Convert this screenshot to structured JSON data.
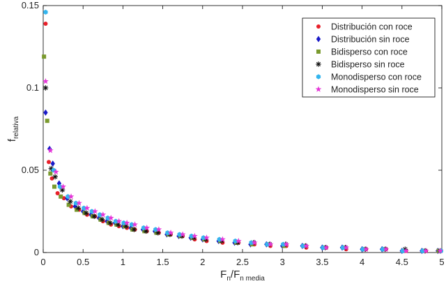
{
  "chart_data": {
    "type": "scatter",
    "title": "",
    "xlabel": {
      "base": "F",
      "sub1": "n",
      "sep": "/F",
      "sub2": "n media"
    },
    "ylabel": {
      "base": "f",
      "sub": "relativa"
    },
    "xlim": [
      0,
      5
    ],
    "ylim": [
      0,
      0.15
    ],
    "x_ticks": [
      0,
      0.5,
      1,
      1.5,
      2,
      2.5,
      3,
      3.5,
      4,
      4.5,
      5
    ],
    "x_tick_labels": [
      "0",
      "0.5",
      "1",
      "1.5",
      "2",
      "2.5",
      "3",
      "3.5",
      "4",
      "4.5",
      "5"
    ],
    "y_ticks": [
      0,
      0.05,
      0.1,
      0.15
    ],
    "y_tick_labels": [
      "0",
      "0.05",
      "0.1",
      "0.15"
    ],
    "grid": false,
    "legend_position": "top-right",
    "series": [
      {
        "name": "Distribución con roce",
        "color": "#e8202a",
        "marker": "circle",
        "points": [
          [
            0.03,
            0.139
          ],
          [
            0.07,
            0.055
          ],
          [
            0.11,
            0.045
          ],
          [
            0.18,
            0.036
          ],
          [
            0.26,
            0.033
          ],
          [
            0.35,
            0.028
          ],
          [
            0.45,
            0.026
          ],
          [
            0.55,
            0.023
          ],
          [
            0.65,
            0.022
          ],
          [
            0.75,
            0.019
          ],
          [
            0.85,
            0.017
          ],
          [
            0.95,
            0.016
          ],
          [
            1.05,
            0.015
          ],
          [
            1.15,
            0.014
          ],
          [
            1.3,
            0.013
          ],
          [
            1.45,
            0.012
          ],
          [
            1.6,
            0.011
          ],
          [
            1.75,
            0.01
          ],
          [
            1.9,
            0.008
          ],
          [
            2.05,
            0.007
          ],
          [
            2.25,
            0.006
          ],
          [
            2.45,
            0.006
          ],
          [
            2.65,
            0.005
          ],
          [
            2.85,
            0.004
          ],
          [
            3.05,
            0.004
          ],
          [
            3.3,
            0.003
          ],
          [
            3.55,
            0.003
          ],
          [
            3.8,
            0.002
          ],
          [
            4.05,
            0.002
          ],
          [
            4.3,
            0.002
          ],
          [
            4.55,
            0.001
          ],
          [
            4.8,
            0.001
          ],
          [
            4.97,
            0.001
          ]
        ]
      },
      {
        "name": "Distribución sin roce",
        "color": "#1a1ac8",
        "marker": "diamond",
        "points": [
          [
            0.03,
            0.085
          ],
          [
            0.08,
            0.063
          ],
          [
            0.12,
            0.054
          ],
          [
            0.2,
            0.042
          ],
          [
            0.3,
            0.033
          ],
          [
            0.4,
            0.028
          ],
          [
            0.5,
            0.025
          ],
          [
            0.6,
            0.023
          ],
          [
            0.7,
            0.021
          ],
          [
            0.8,
            0.019
          ],
          [
            0.9,
            0.018
          ],
          [
            1.0,
            0.016
          ],
          [
            1.1,
            0.015
          ],
          [
            1.25,
            0.014
          ],
          [
            1.4,
            0.013
          ],
          [
            1.55,
            0.011
          ],
          [
            1.7,
            0.01
          ],
          [
            1.85,
            0.009
          ],
          [
            2.0,
            0.008
          ],
          [
            2.2,
            0.007
          ],
          [
            2.4,
            0.006
          ],
          [
            2.6,
            0.005
          ],
          [
            2.8,
            0.005
          ],
          [
            3.0,
            0.004
          ],
          [
            3.25,
            0.004
          ],
          [
            3.5,
            0.003
          ],
          [
            3.75,
            0.003
          ],
          [
            4.0,
            0.002
          ],
          [
            4.25,
            0.002
          ],
          [
            4.5,
            0.001
          ],
          [
            4.75,
            0.001
          ],
          [
            4.95,
            0.001
          ]
        ]
      },
      {
        "name": "Bidisperso con roce",
        "color": "#7a9a2e",
        "marker": "square",
        "points": [
          [
            0.01,
            0.119
          ],
          [
            0.05,
            0.08
          ],
          [
            0.09,
            0.048
          ],
          [
            0.14,
            0.04
          ],
          [
            0.22,
            0.034
          ],
          [
            0.32,
            0.029
          ],
          [
            0.42,
            0.026
          ],
          [
            0.52,
            0.024
          ],
          [
            0.62,
            0.022
          ],
          [
            0.72,
            0.02
          ],
          [
            0.82,
            0.018
          ],
          [
            0.92,
            0.017
          ],
          [
            1.02,
            0.016
          ],
          [
            1.12,
            0.014
          ],
          [
            1.27,
            0.013
          ],
          [
            1.42,
            0.012
          ],
          [
            1.57,
            0.011
          ],
          [
            1.72,
            0.01
          ],
          [
            1.87,
            0.009
          ],
          [
            2.02,
            0.008
          ],
          [
            2.22,
            0.007
          ],
          [
            2.42,
            0.006
          ],
          [
            2.62,
            0.005
          ],
          [
            2.82,
            0.005
          ],
          [
            3.02,
            0.004
          ],
          [
            3.27,
            0.004
          ],
          [
            3.52,
            0.003
          ],
          [
            3.77,
            0.003
          ],
          [
            4.02,
            0.002
          ],
          [
            4.27,
            0.002
          ],
          [
            4.52,
            0.001
          ],
          [
            4.77,
            0.001
          ],
          [
            4.96,
            0.001
          ]
        ]
      },
      {
        "name": "Bidisperso sin roce",
        "color": "#111111",
        "marker": "asterisk",
        "points": [
          [
            0.03,
            0.1
          ],
          [
            0.1,
            0.051
          ],
          [
            0.15,
            0.046
          ],
          [
            0.24,
            0.038
          ],
          [
            0.34,
            0.031
          ],
          [
            0.44,
            0.027
          ],
          [
            0.54,
            0.024
          ],
          [
            0.64,
            0.022
          ],
          [
            0.74,
            0.02
          ],
          [
            0.84,
            0.018
          ],
          [
            0.94,
            0.017
          ],
          [
            1.04,
            0.016
          ],
          [
            1.14,
            0.014
          ],
          [
            1.29,
            0.013
          ],
          [
            1.44,
            0.012
          ],
          [
            1.59,
            0.011
          ],
          [
            1.74,
            0.01
          ],
          [
            1.89,
            0.009
          ],
          [
            2.04,
            0.008
          ],
          [
            2.24,
            0.007
          ],
          [
            2.44,
            0.006
          ],
          [
            2.64,
            0.006
          ],
          [
            2.84,
            0.005
          ],
          [
            3.04,
            0.005
          ],
          [
            3.29,
            0.004
          ],
          [
            3.54,
            0.003
          ],
          [
            3.79,
            0.003
          ],
          [
            4.04,
            0.002
          ],
          [
            4.29,
            0.002
          ],
          [
            4.54,
            0.002
          ],
          [
            4.79,
            0.001
          ],
          [
            4.98,
            0.001
          ]
        ]
      },
      {
        "name": "Monodisperso con roce",
        "color": "#33b5ee",
        "marker": "hexagon",
        "points": [
          [
            0.03,
            0.146
          ],
          [
            0.13,
            0.05
          ],
          [
            0.21,
            0.04
          ],
          [
            0.31,
            0.034
          ],
          [
            0.41,
            0.03
          ],
          [
            0.51,
            0.027
          ],
          [
            0.61,
            0.025
          ],
          [
            0.71,
            0.023
          ],
          [
            0.81,
            0.021
          ],
          [
            0.91,
            0.019
          ],
          [
            1.01,
            0.018
          ],
          [
            1.11,
            0.017
          ],
          [
            1.26,
            0.015
          ],
          [
            1.41,
            0.014
          ],
          [
            1.56,
            0.012
          ],
          [
            1.71,
            0.011
          ],
          [
            1.86,
            0.01
          ],
          [
            2.01,
            0.009
          ],
          [
            2.21,
            0.008
          ],
          [
            2.41,
            0.007
          ],
          [
            2.61,
            0.006
          ],
          [
            2.81,
            0.005
          ],
          [
            3.01,
            0.005
          ],
          [
            3.26,
            0.004
          ],
          [
            3.51,
            0.003
          ],
          [
            3.76,
            0.003
          ],
          [
            4.01,
            0.002
          ],
          [
            4.26,
            0.002
          ],
          [
            4.51,
            0.001
          ],
          [
            4.76,
            0.001
          ],
          [
            4.99,
            0.001
          ]
        ]
      },
      {
        "name": "Monodisperso sin roce",
        "color": "#e535d8",
        "marker": "star",
        "points": [
          [
            0.03,
            0.104
          ],
          [
            0.09,
            0.062
          ],
          [
            0.16,
            0.049
          ],
          [
            0.25,
            0.04
          ],
          [
            0.35,
            0.034
          ],
          [
            0.45,
            0.03
          ],
          [
            0.55,
            0.027
          ],
          [
            0.65,
            0.025
          ],
          [
            0.75,
            0.023
          ],
          [
            0.85,
            0.021
          ],
          [
            0.95,
            0.019
          ],
          [
            1.05,
            0.018
          ],
          [
            1.15,
            0.017
          ],
          [
            1.3,
            0.015
          ],
          [
            1.45,
            0.014
          ],
          [
            1.6,
            0.012
          ],
          [
            1.75,
            0.011
          ],
          [
            1.9,
            0.01
          ],
          [
            2.05,
            0.009
          ],
          [
            2.25,
            0.008
          ],
          [
            2.45,
            0.007
          ],
          [
            2.65,
            0.006
          ],
          [
            2.85,
            0.005
          ],
          [
            3.05,
            0.005
          ],
          [
            3.3,
            0.004
          ],
          [
            3.55,
            0.003
          ],
          [
            3.8,
            0.003
          ],
          [
            4.05,
            0.002
          ],
          [
            4.3,
            0.002
          ],
          [
            4.55,
            0.001
          ],
          [
            4.8,
            0.001
          ],
          [
            4.98,
            0.001
          ]
        ]
      }
    ]
  }
}
